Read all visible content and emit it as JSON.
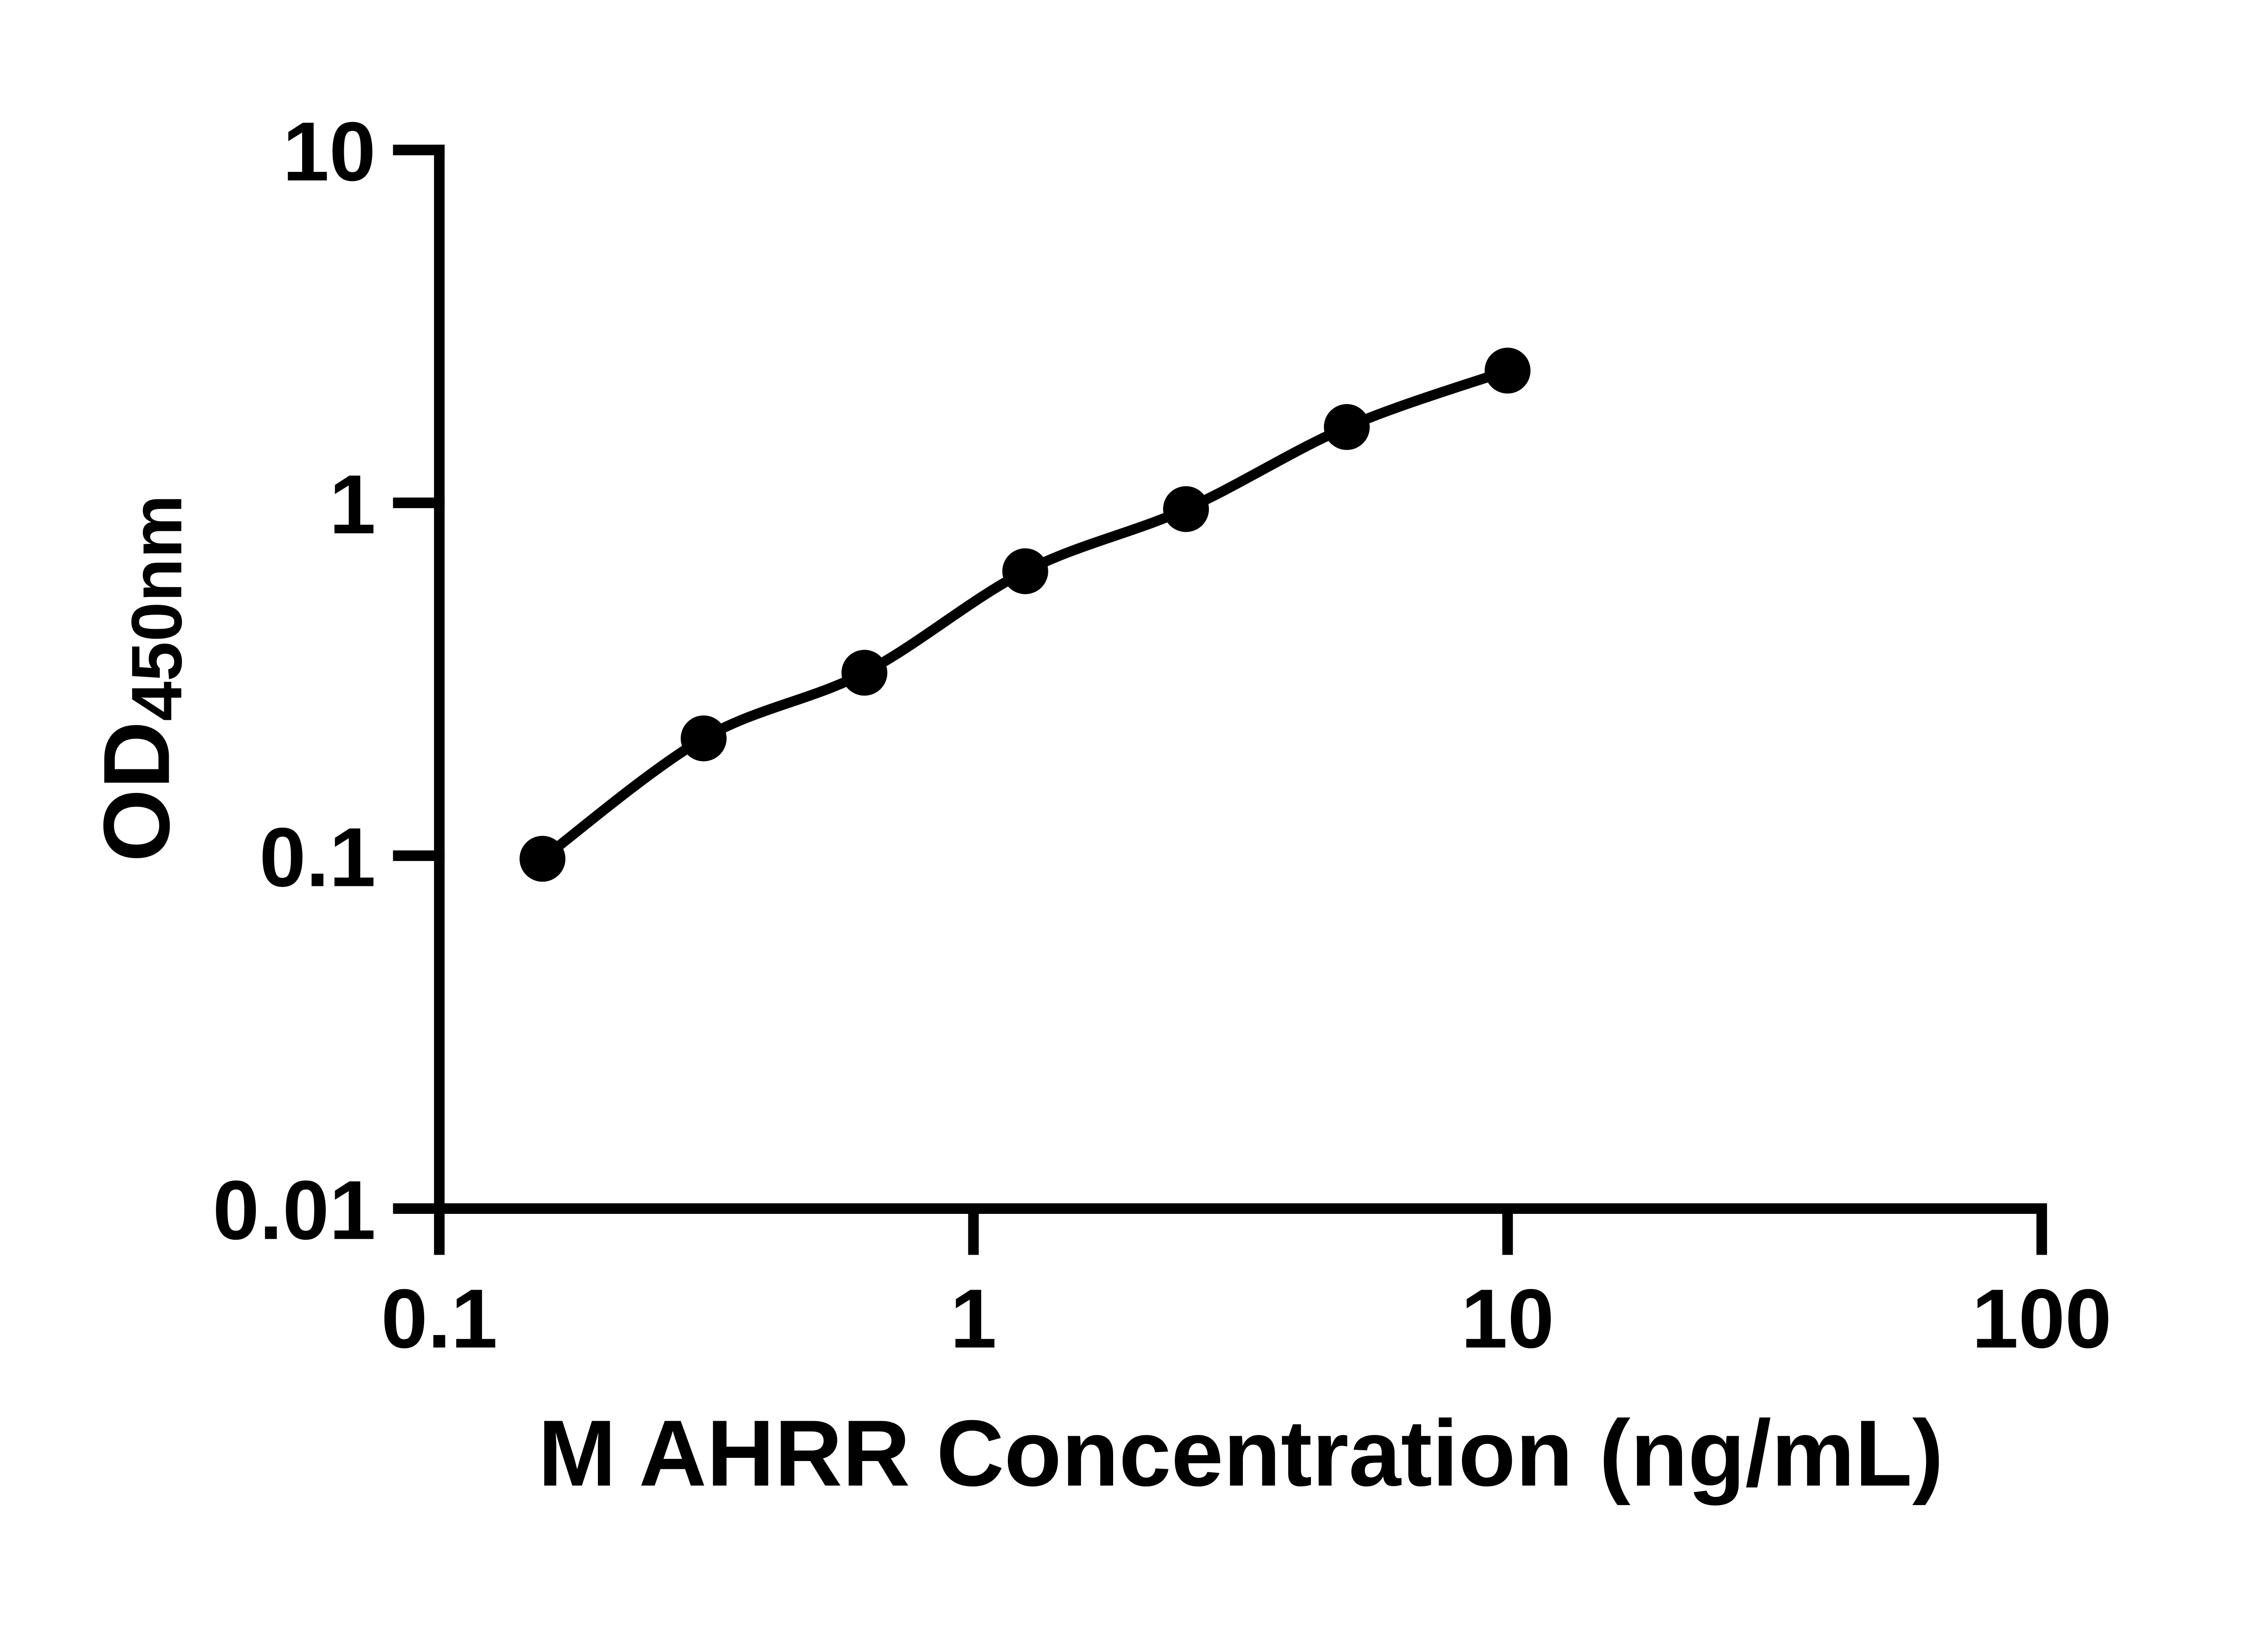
{
  "figure": {
    "background_color": "#ffffff",
    "ink_color": "#000000"
  },
  "chart_data": {
    "type": "scatter",
    "line_style": "smooth",
    "marker": "filled-circle",
    "grid": false,
    "legend": false,
    "x_scale": "log10",
    "y_scale": "log10",
    "xlim": [
      0.1,
      100
    ],
    "ylim": [
      0.01,
      10
    ],
    "xlabel": "M AHRR Concentration (ng/mL)",
    "ylabel": "OD450nm",
    "ylabel_main": "OD",
    "ylabel_sub": "450nm",
    "x_tick_values": [
      0.1,
      1,
      10,
      100
    ],
    "x_tick_labels": [
      "0.1",
      "1",
      "10",
      "100"
    ],
    "y_tick_values": [
      0.01,
      0.1,
      1,
      10
    ],
    "y_tick_labels": [
      "0.01",
      "0.1",
      "1",
      "10"
    ],
    "series": [
      {
        "points_x": [
          0.156,
          0.3125,
          0.625,
          1.25,
          2.5,
          5,
          10
        ],
        "points_y": [
          0.098,
          0.215,
          0.33,
          0.64,
          0.96,
          1.64,
          2.37
        ]
      }
    ]
  }
}
